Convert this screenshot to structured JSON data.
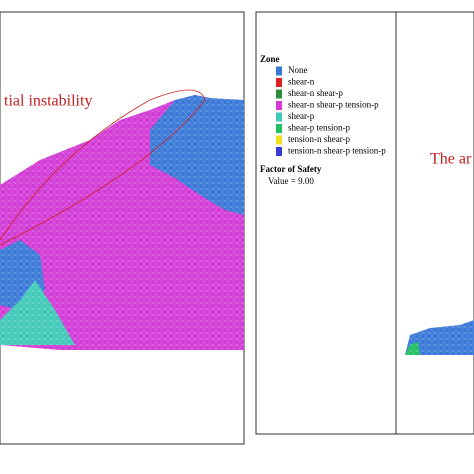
{
  "left_panel": {
    "annotation": "tial instability"
  },
  "right_panel": {
    "legend": {
      "title": "Zone",
      "items": [
        {
          "label": "None",
          "color": "#3a78d8"
        },
        {
          "label": "shear-n",
          "color": "#e02020"
        },
        {
          "label": "shear-n shear-p",
          "color": "#2e8b3a"
        },
        {
          "label": "shear-n shear-p tension-p",
          "color": "#d83ad8"
        },
        {
          "label": "shear-p",
          "color": "#40c8b8"
        },
        {
          "label": "shear-p tension-p",
          "color": "#20c060"
        },
        {
          "label": "tension-n shear-p",
          "color": "#f0e020"
        },
        {
          "label": "tension-n shear-p tension-p",
          "color": "#3a3ad8"
        }
      ]
    },
    "factor_of_safety": {
      "title": "Factor of Safety",
      "value_label": "Value = 9.00"
    },
    "annotation": "The ar"
  }
}
